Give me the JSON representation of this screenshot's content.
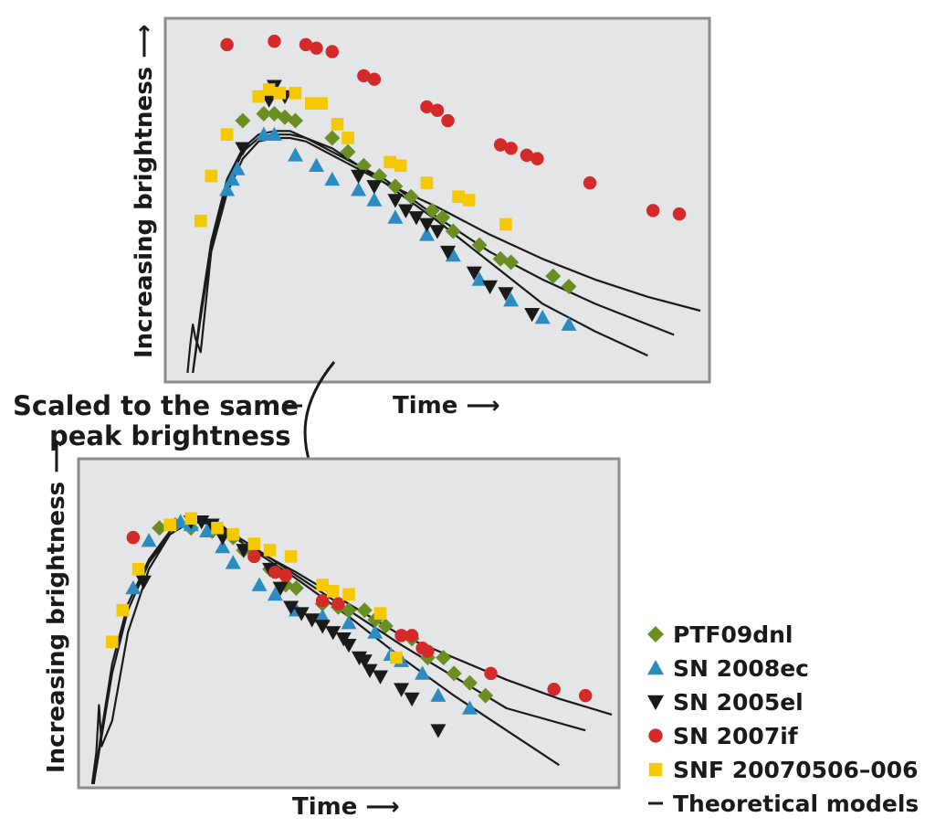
{
  "annotation": {
    "line1": "Scaled to the same",
    "line2": "peak brightness"
  },
  "legend": {
    "items": [
      {
        "label": "PTF09dnl",
        "marker": "diamond",
        "color": "#6b8e23"
      },
      {
        "label": "SN 2008ec",
        "marker": "triangle-up",
        "color": "#2b8cc4"
      },
      {
        "label": "SN 2005el",
        "marker": "triangle-down",
        "color": "#1a1a1a"
      },
      {
        "label": "SN 2007if",
        "marker": "circle",
        "color": "#d42a2a"
      },
      {
        "label": "SNF 20070506–006",
        "marker": "square",
        "color": "#f5c800"
      },
      {
        "label": "Theoretical models",
        "marker": "line",
        "color": "#1a1a1a"
      }
    ]
  },
  "chart_data": [
    {
      "type": "scatter",
      "panel": "top",
      "xlabel": "Time ⟶",
      "ylabel": "Increasing brightness ⟶",
      "xlim": [
        0,
        100
      ],
      "ylim": [
        0,
        100
      ],
      "grid": false,
      "series": [
        {
          "name": "PTF09dnl",
          "marker": "diamond",
          "color": "#6b8e23",
          "x": [
            13,
            17,
            19,
            21,
            23,
            30,
            33,
            36,
            39,
            42,
            45,
            49,
            51,
            53,
            58,
            62,
            64,
            72,
            75
          ],
          "y": [
            73,
            75,
            75,
            74,
            73,
            68,
            64,
            60,
            57,
            54,
            51,
            47,
            45,
            41,
            37,
            33,
            32,
            28,
            25
          ]
        },
        {
          "name": "SN 2008ec",
          "marker": "triangle-up",
          "color": "#2b8cc4",
          "x": [
            10,
            11,
            12,
            17,
            19,
            23,
            27,
            30,
            35,
            38,
            42,
            48,
            53,
            58,
            64,
            70,
            75
          ],
          "y": [
            53,
            56,
            59,
            69,
            69,
            63,
            60,
            56,
            53,
            50,
            45,
            40,
            34,
            27,
            21,
            16,
            14
          ]
        },
        {
          "name": "SN 2005el",
          "marker": "triangle-down",
          "color": "#1a1a1a",
          "x": [
            13,
            18,
            19,
            21,
            35,
            38,
            42,
            44,
            46,
            48,
            50,
            52,
            57,
            60,
            63,
            68
          ],
          "y": [
            65,
            79,
            83,
            80,
            57,
            54,
            50,
            47,
            45,
            43,
            41,
            35,
            29,
            25,
            23,
            17
          ]
        },
        {
          "name": "SN 2007if",
          "marker": "circle",
          "color": "#d42a2a",
          "x": [
            10,
            19,
            25,
            27,
            30,
            36,
            38,
            48,
            50,
            52,
            62,
            64,
            67,
            69,
            79,
            91,
            96
          ],
          "y": [
            95,
            96,
            95,
            94,
            93,
            86,
            85,
            77,
            76,
            73,
            66,
            65,
            63,
            62,
            55,
            47,
            46
          ]
        },
        {
          "name": "SNF 20070506–006",
          "marker": "square",
          "color": "#f5c800",
          "x": [
            5,
            7,
            10,
            16,
            18,
            20,
            23,
            26,
            28,
            31,
            33,
            41,
            43,
            48,
            54,
            56,
            63
          ],
          "y": [
            44,
            57,
            69,
            80,
            82,
            81,
            81,
            78,
            78,
            72,
            68,
            61,
            60,
            55,
            51,
            50,
            43
          ]
        },
        {
          "name": "Theoretical models",
          "marker": "line",
          "color": "#1a1a1a",
          "lines": [
            {
              "x": [
                2.5,
                3,
                3.5,
                4,
                5,
                7,
                10,
                13,
                16,
                19,
                22,
                25,
                30,
                40,
                50,
                60,
                70,
                80,
                90,
                100
              ],
              "y": [
                0,
                8,
                14,
                10,
                6,
                35,
                52,
                62,
                67,
                68,
                68,
                67,
                63,
                55,
                48,
                40,
                33,
                27,
                22,
                18
              ]
            },
            {
              "x": [
                3.5,
                5,
                7,
                10,
                13,
                16,
                19,
                22,
                25,
                30,
                40,
                50,
                60,
                70,
                80,
                90
              ],
              "y": [
                0,
                18,
                38,
                56,
                65,
                69,
                70,
                70,
                68,
                65,
                55,
                44,
                32,
                20,
                12,
                5
              ]
            },
            {
              "x": [
                3.5,
                5,
                7,
                10,
                13,
                16,
                19,
                22,
                25,
                30,
                40,
                50,
                60,
                70,
                80,
                95
              ],
              "y": [
                0,
                16,
                36,
                54,
                64,
                68,
                69,
                69,
                68,
                64,
                56,
                45,
                35,
                27,
                20,
                11
              ]
            }
          ]
        }
      ]
    },
    {
      "type": "scatter",
      "panel": "bottom",
      "xlabel": "Time ⟶",
      "ylabel": "Increasing brightness ⟶",
      "xlim": [
        0,
        100
      ],
      "ylim": [
        0,
        100
      ],
      "grid": false,
      "series": [
        {
          "name": "PTF09dnl",
          "marker": "diamond",
          "color": "#6b8e23",
          "x": [
            14,
            17,
            20,
            24,
            28,
            30,
            35,
            38,
            40,
            45,
            48,
            50,
            53,
            55,
            57,
            62,
            65,
            68,
            70,
            73,
            76
          ],
          "y": [
            81,
            82,
            81,
            80,
            78,
            74,
            68,
            63,
            62,
            57,
            56,
            55,
            55,
            52,
            50,
            46,
            40,
            40,
            35,
            32,
            28
          ]
        },
        {
          "name": "SN 2008ec",
          "marker": "triangle-up",
          "color": "#2b8cc4",
          "x": [
            9,
            12,
            18,
            20,
            23,
            26,
            28,
            33,
            36,
            40,
            45,
            50,
            55,
            58,
            60,
            64,
            67,
            73
          ],
          "y": [
            62,
            77,
            83,
            82,
            80,
            75,
            70,
            63,
            60,
            55,
            53,
            51,
            48,
            41,
            39,
            35,
            28,
            24
          ]
        },
        {
          "name": "SN 2005el",
          "marker": "triangle-down",
          "color": "#1a1a1a",
          "x": [
            11,
            20,
            22,
            24,
            26,
            30,
            35,
            37,
            39,
            41,
            43,
            45,
            47,
            49,
            50,
            52,
            53,
            54,
            56,
            60,
            62,
            67
          ],
          "y": [
            64,
            83,
            83,
            82,
            78,
            74,
            68,
            62,
            56,
            54,
            52,
            50,
            48,
            46,
            44,
            40,
            39,
            36,
            34,
            30,
            27,
            17
          ]
        },
        {
          "name": "SN 2007if",
          "marker": "circle",
          "color": "#d42a2a",
          "x": [
            9,
            32,
            36,
            38,
            45,
            48,
            60,
            62,
            64,
            65,
            77,
            89,
            95
          ],
          "y": [
            78,
            72,
            67,
            66,
            58,
            57,
            47,
            47,
            43,
            42,
            35,
            30,
            28
          ]
        },
        {
          "name": "SNF 20070506–006",
          "marker": "square",
          "color": "#f5c800",
          "x": [
            5,
            7,
            10,
            16,
            20,
            25,
            28,
            32,
            35,
            39,
            45,
            47,
            50,
            56,
            59
          ],
          "y": [
            45,
            55,
            68,
            82,
            84,
            81,
            79,
            76,
            74,
            72,
            63,
            61,
            60,
            54,
            40
          ]
        },
        {
          "name": "Theoretical models",
          "marker": "line",
          "color": "#1a1a1a",
          "lines": [
            {
              "x": [
                1.2,
                2,
                2.5,
                3,
                5,
                8,
                12,
                16,
                20,
                25,
                30,
                40,
                50,
                60,
                70,
                80,
                90,
                100
              ],
              "y": [
                0,
                10,
                25,
                12,
                20,
                48,
                68,
                79,
                84,
                83,
                76,
                67,
                57,
                47,
                40,
                33,
                27,
                22
              ]
            },
            {
              "x": [
                1.5,
                3,
                5,
                8,
                12,
                16,
                20,
                25,
                30,
                40,
                50,
                60,
                70,
                80,
                95
              ],
              "y": [
                0,
                15,
                35,
                55,
                70,
                79,
                83,
                82,
                77,
                66,
                55,
                44,
                34,
                24,
                17
              ]
            },
            {
              "x": [
                1.5,
                3,
                5,
                8,
                12,
                16,
                20,
                25,
                30,
                40,
                50,
                60,
                70,
                80,
                90
              ],
              "y": [
                0,
                17,
                38,
                57,
                71,
                80,
                84,
                82,
                76,
                65,
                53,
                40,
                28,
                17,
                6
              ]
            }
          ]
        }
      ]
    }
  ]
}
